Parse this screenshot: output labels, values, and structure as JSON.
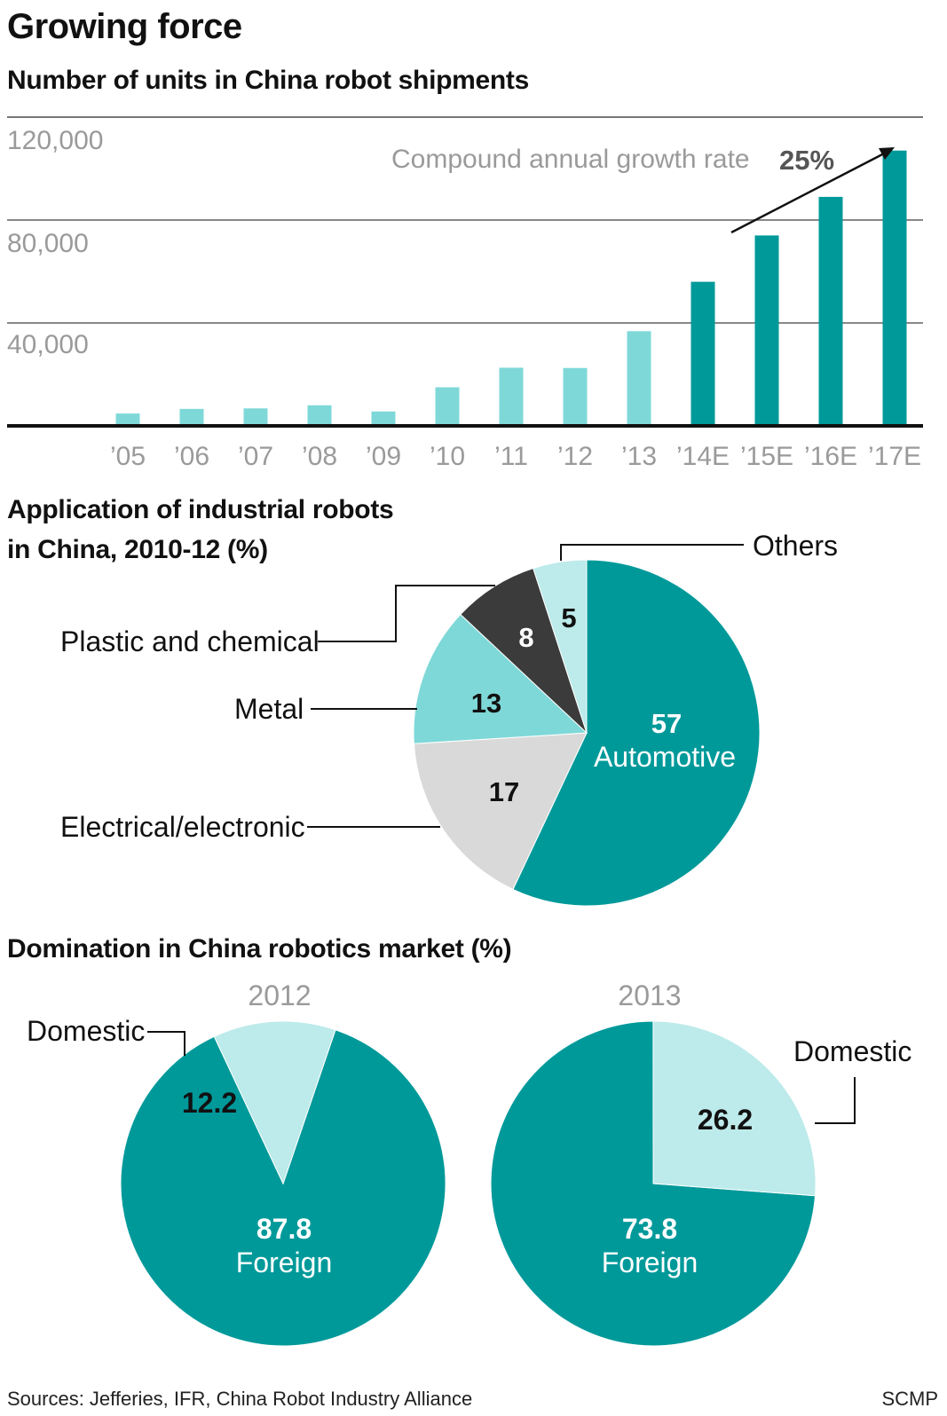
{
  "title": "Growing force",
  "sources": "Sources: Jefferies, IFR, China Robot Industry Alliance",
  "credit": "SCMP",
  "colors": {
    "teal": "#00999a",
    "light_teal": "#7fd8d8",
    "pale_teal": "#bdeaea",
    "dark": "#3b3b3b",
    "grey": "#d9d9d9"
  },
  "chart_data": [
    {
      "type": "bar",
      "title": "Number of units in China robot shipments",
      "categories": [
        "’05",
        "’06",
        "’07",
        "’08",
        "’09",
        "’10",
        "’11",
        "’12",
        "’13",
        "’14E",
        "’15E",
        "’16E",
        "’17E"
      ],
      "values": [
        4800,
        6600,
        6800,
        8000,
        5600,
        15000,
        22600,
        22500,
        36800,
        56000,
        74000,
        89000,
        107000
      ],
      "estimated_from": 9,
      "ylim": [
        0,
        120000
      ],
      "yticks": [
        40000,
        80000,
        120000
      ],
      "ytick_labels": [
        "40,000",
        "80,000",
        "120,000"
      ],
      "grid": true,
      "annotation": {
        "text": "Compound annual growth rate",
        "value": "25%"
      }
    },
    {
      "type": "pie",
      "title": "Application of industrial robots in China, 2010-12 (%)",
      "slices": [
        {
          "label": "Automotive",
          "value": 57,
          "value_label": "57",
          "color": "#00999a"
        },
        {
          "label": "Electrical/electronic",
          "value": 17,
          "value_label": "17",
          "color": "#d9d9d9"
        },
        {
          "label": "Metal",
          "value": 13,
          "value_label": "13",
          "color": "#7fd8d8"
        },
        {
          "label": "Plastic and chemical",
          "value": 8,
          "value_label": "8",
          "color": "#3b3b3b"
        },
        {
          "label": "Others",
          "value": 5,
          "value_label": "5",
          "color": "#bdeaea"
        }
      ]
    },
    {
      "type": "pie",
      "title": "Domination in China robotics market (%)",
      "subtitle": "2012",
      "slices": [
        {
          "label": "Foreign",
          "value": 87.8,
          "value_label": "87.8",
          "color": "#00999a"
        },
        {
          "label": "Domestic",
          "value": 12.2,
          "value_label": "12.2",
          "color": "#bdeaea"
        }
      ]
    },
    {
      "type": "pie",
      "subtitle": "2013",
      "slices": [
        {
          "label": "Foreign",
          "value": 73.8,
          "value_label": "73.8",
          "color": "#00999a"
        },
        {
          "label": "Domestic",
          "value": 26.2,
          "value_label": "26.2",
          "color": "#bdeaea"
        }
      ]
    }
  ]
}
